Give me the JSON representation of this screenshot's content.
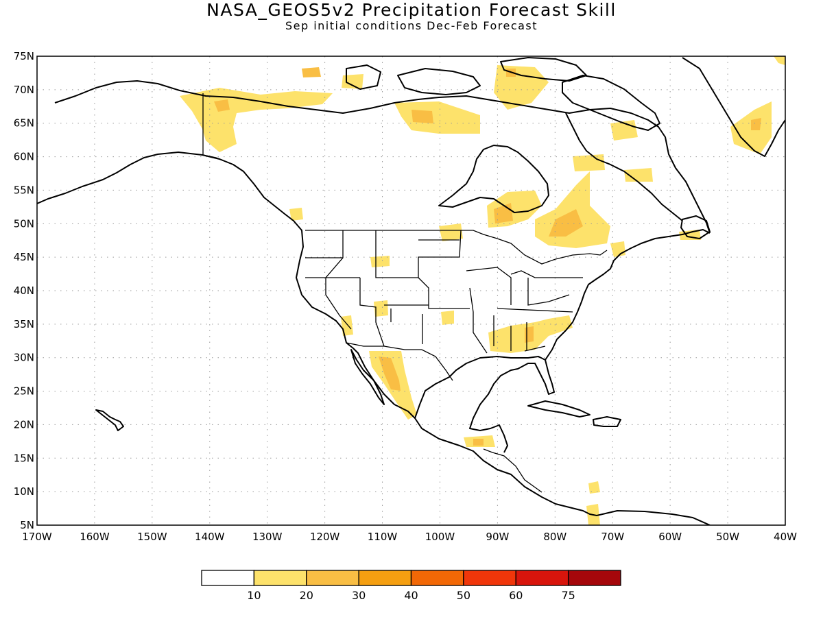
{
  "title": "NASA_GEOS5v2 Precipitation Forecast Skill",
  "subtitle": "Sep initial conditions  Dec-Feb Forecast",
  "map": {
    "lon_range": [
      -170,
      -40
    ],
    "lat_range": [
      5,
      75
    ],
    "lon_ticks": [
      -170,
      -160,
      -150,
      -140,
      -130,
      -120,
      -110,
      -100,
      -90,
      -80,
      -70,
      -60,
      -50,
      -40
    ],
    "lat_ticks": [
      5,
      10,
      15,
      20,
      25,
      30,
      35,
      40,
      45,
      50,
      55,
      60,
      65,
      70,
      75
    ],
    "lon_labels": [
      "170W",
      "160W",
      "150W",
      "140W",
      "130W",
      "120W",
      "110W",
      "100W",
      "90W",
      "80W",
      "70W",
      "60W",
      "50W",
      "40W"
    ],
    "lat_labels": [
      "5N",
      "10N",
      "15N",
      "20N",
      "25N",
      "30N",
      "35N",
      "40N",
      "45N",
      "50N",
      "55N",
      "60N",
      "65N",
      "70N",
      "75N"
    ],
    "grid": "dotted"
  },
  "colorbar": {
    "colors": [
      "#ffffff",
      "#fde26b",
      "#f9be44",
      "#f59f11",
      "#f26806",
      "#f0360a",
      "#d8150c",
      "#a5070b"
    ],
    "labels": [
      "10",
      "20",
      "30",
      "40",
      "50",
      "60",
      "75"
    ]
  }
}
